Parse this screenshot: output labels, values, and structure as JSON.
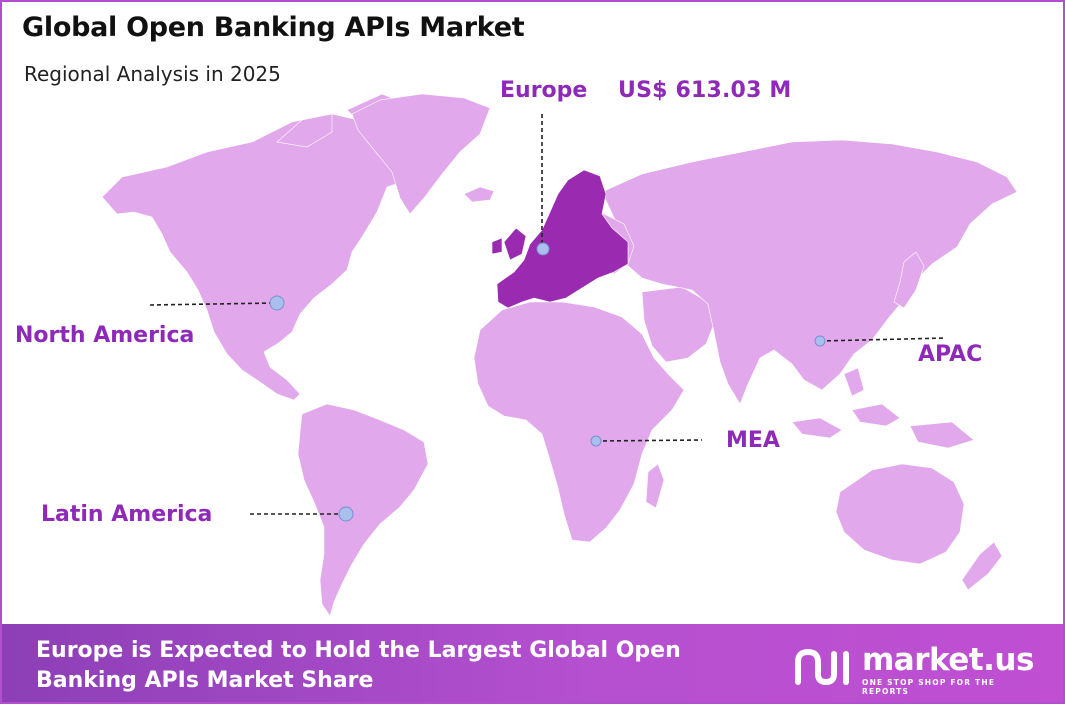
{
  "header": {
    "title": "Global Open Banking APIs Market",
    "subtitle": "Regional Analysis in 2025"
  },
  "regions": {
    "europe": {
      "label": "Europe",
      "value": "US$ 613.03 M",
      "highlighted": true
    },
    "north_america": {
      "label": "North America"
    },
    "latin_america": {
      "label": "Latin America"
    },
    "mea": {
      "label": "MEA"
    },
    "apac": {
      "label": "APAC"
    }
  },
  "footer": {
    "text": "Europe is Expected to Hold the Largest Global Open Banking APIs Market Share",
    "brand_name": "market.us",
    "brand_tagline": "ONE STOP SHOP FOR THE REPORTS"
  },
  "colors": {
    "land": "#e2a8ec",
    "highlight": "#9a2bb0",
    "label": "#8f29b8",
    "marker": "#a9c0ee",
    "footer": "#a84bcc"
  }
}
